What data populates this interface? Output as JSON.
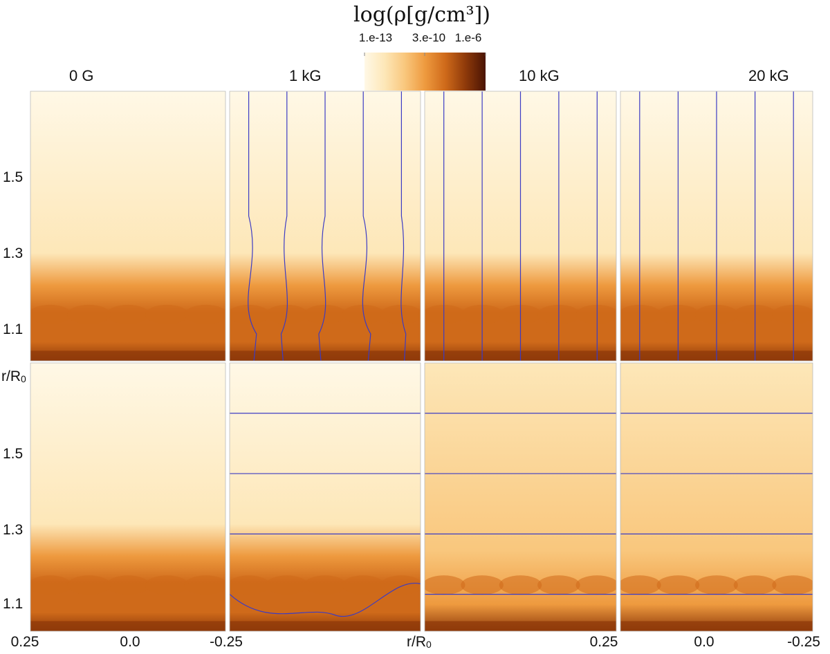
{
  "chart_data": {
    "type": "heatmap",
    "colorbar": {
      "title": "log(ρ[g/cm³])",
      "tick_labels": [
        "1.e-13",
        "3.e-10",
        "1.e-6"
      ],
      "tick_values": [
        -13,
        -9.52,
        -6
      ],
      "range": [
        -13,
        -6
      ],
      "colors": [
        "#fff8e6",
        "#fde7b8",
        "#f9c77d",
        "#ee9a3f",
        "#cf6a1a",
        "#8f3a0a",
        "#4a1404"
      ]
    },
    "panel_titles": [
      "0 G",
      "1 kG",
      "10 kG",
      "20 kG"
    ],
    "ylabel": "r/R₀",
    "ylabel_main": "r/R",
    "ylabel_sub": "0",
    "ytick_labels": [
      "1.5",
      "1.3",
      "1.1"
    ],
    "yticks": [
      1.5,
      1.3,
      1.1
    ],
    "ylim": [
      1.02,
      1.82
    ],
    "xlabel": "r/R₀",
    "xlabel_main": "r/R",
    "xlabel_sub": "0",
    "xtick_labels": [
      "0.25",
      "0.0",
      "-0.25",
      "0.25",
      "0.0",
      "-0.25"
    ],
    "xlim": [
      0.25,
      -0.25
    ],
    "rows": [
      {
        "name": "top",
        "panels": [
          {
            "field_strength": "0 G",
            "field_line_orientation": "none",
            "field_lines_x": []
          },
          {
            "field_strength": "1 kG",
            "field_line_orientation": "vertical-distorted",
            "field_lines_x": [
              -0.2,
              -0.1,
              0.0,
              0.1,
              0.2
            ]
          },
          {
            "field_strength": "10 kG",
            "field_line_orientation": "vertical",
            "field_lines_x": [
              -0.2,
              -0.1,
              0.0,
              0.1,
              0.2
            ]
          },
          {
            "field_strength": "20 kG",
            "field_line_orientation": "vertical",
            "field_lines_x": [
              -0.2,
              -0.1,
              0.0,
              0.1,
              0.2
            ]
          }
        ]
      },
      {
        "name": "bottom",
        "panels": [
          {
            "field_strength": "0 G",
            "field_line_orientation": "none",
            "field_lines_r": []
          },
          {
            "field_strength": "1 kG",
            "field_line_orientation": "horizontal-distorted",
            "field_lines_r": [
              1.67,
              1.49,
              1.31,
              1.12
            ]
          },
          {
            "field_strength": "10 kG",
            "field_line_orientation": "horizontal",
            "field_lines_r": [
              1.67,
              1.49,
              1.31,
              1.13
            ]
          },
          {
            "field_strength": "20 kG",
            "field_line_orientation": "horizontal",
            "field_lines_r": [
              1.67,
              1.49,
              1.31,
              1.13
            ]
          }
        ]
      }
    ],
    "field_line_color": "#3b3bc4"
  }
}
